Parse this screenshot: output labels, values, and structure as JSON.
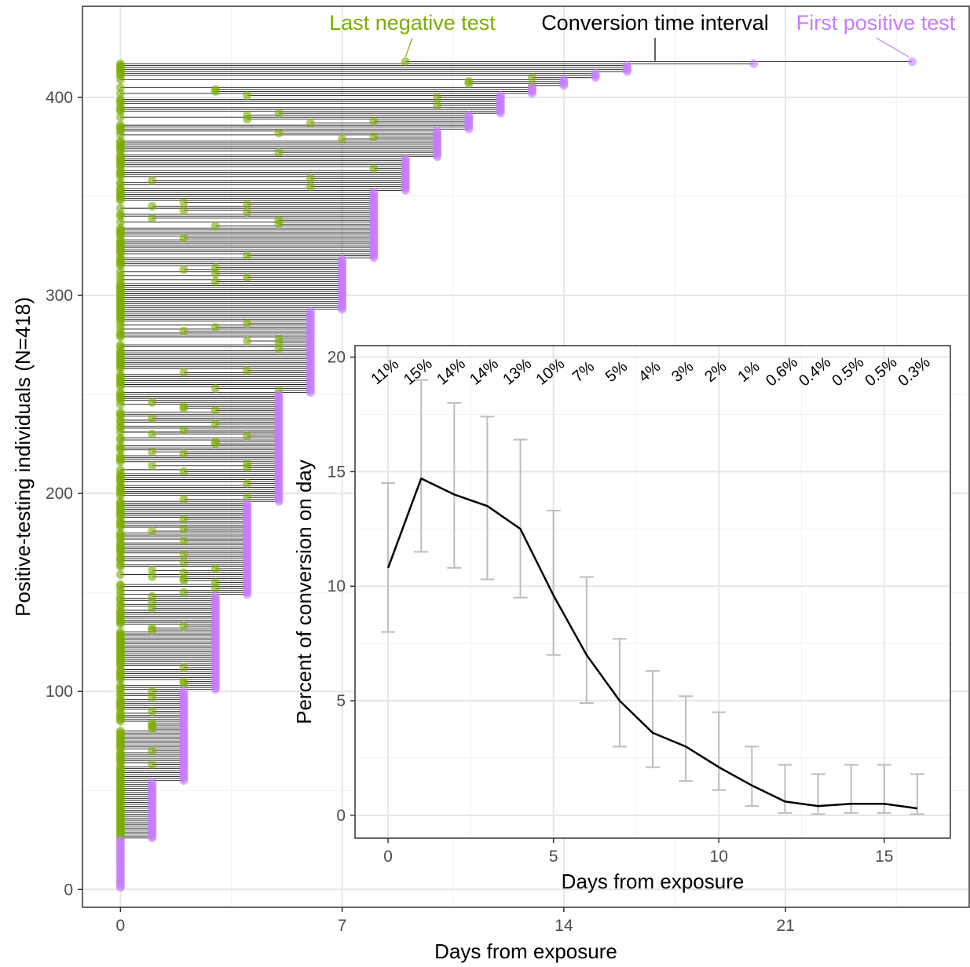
{
  "chart_data": [
    {
      "type": "interval-dotplot",
      "n_individuals": 418,
      "xlabel": "Days from exposure",
      "ylabel": "Positive-testing individuals (N=418)",
      "xlim": [
        -1.2,
        26.8
      ],
      "ylim": [
        -9,
        446
      ],
      "x_ticks": [
        0,
        7,
        14,
        21
      ],
      "y_ticks": [
        0,
        100,
        200,
        300,
        400
      ],
      "grid": true,
      "legend": {
        "last_negative": "Last negative test",
        "interval": "Conversion time interval",
        "first_positive": "First positive test"
      },
      "colors": {
        "last_negative": "#7cae00",
        "first_positive": "#c77cff",
        "interval": "#000000"
      },
      "groups": [
        {
          "first_positive_day": 0,
          "rows": [
            1,
            25
          ],
          "last_negative_days": [
            0
          ]
        },
        {
          "first_positive_day": 1,
          "rows": [
            26,
            54
          ],
          "last_negative_days": [
            0
          ]
        },
        {
          "first_positive_day": 2,
          "rows": [
            55,
            100
          ],
          "last_negative_days": [
            0,
            1
          ]
        },
        {
          "first_positive_day": 3,
          "rows": [
            101,
            148
          ],
          "last_negative_days": [
            0,
            1,
            2
          ]
        },
        {
          "first_positive_day": 4,
          "rows": [
            149,
            195
          ],
          "last_negative_days": [
            0,
            1,
            2,
            3
          ]
        },
        {
          "first_positive_day": 5,
          "rows": [
            196,
            250
          ],
          "last_negative_days": [
            0,
            1,
            2,
            3,
            4
          ]
        },
        {
          "first_positive_day": 6,
          "rows": [
            251,
            292
          ],
          "last_negative_days": [
            0,
            2,
            3,
            4,
            5
          ]
        },
        {
          "first_positive_day": 7,
          "rows": [
            293,
            318
          ],
          "last_negative_days": [
            0,
            2,
            3,
            4,
            5
          ]
        },
        {
          "first_positive_day": 8,
          "rows": [
            319,
            352
          ],
          "last_negative_days": [
            0,
            1,
            2,
            3,
            4,
            5,
            6
          ]
        },
        {
          "first_positive_day": 9,
          "rows": [
            353,
            369
          ],
          "last_negative_days": [
            0,
            1,
            2,
            4,
            6,
            7,
            8
          ]
        },
        {
          "first_positive_day": 10,
          "rows": [
            370,
            383
          ],
          "last_negative_days": [
            0,
            2,
            4,
            5,
            7,
            8
          ]
        },
        {
          "first_positive_day": 11,
          "rows": [
            384,
            391
          ],
          "last_negative_days": [
            0,
            4,
            6,
            7,
            8
          ]
        },
        {
          "first_positive_day": 12,
          "rows": [
            392,
            401
          ],
          "last_negative_days": [
            0,
            4,
            5,
            6,
            7,
            8,
            10
          ]
        },
        {
          "first_positive_day": 13,
          "rows": [
            402,
            405
          ],
          "last_negative_days": [
            0,
            3,
            9
          ]
        },
        {
          "first_positive_day": 14,
          "rows": [
            406,
            409
          ],
          "last_negative_days": [
            0,
            5,
            11,
            13
          ]
        },
        {
          "first_positive_day": 15,
          "rows": [
            410,
            412
          ],
          "last_negative_days": [
            0,
            9,
            13
          ]
        },
        {
          "first_positive_day": 16,
          "rows": [
            413,
            416
          ],
          "last_negative_days": [
            0,
            14,
            15
          ]
        },
        {
          "first_positive_day": 20,
          "rows": [
            417,
            417
          ],
          "last_negative_days": [
            0
          ]
        },
        {
          "first_positive_day": 25,
          "rows": [
            418,
            418
          ],
          "last_negative_days": [
            9
          ]
        }
      ]
    },
    {
      "type": "line",
      "xlabel": "Days from exposure",
      "ylabel": "Percent of conversion on day",
      "xlim": [
        -1,
        17
      ],
      "ylim": [
        -1,
        20.5
      ],
      "x_ticks": [
        0,
        5,
        10,
        15
      ],
      "y_ticks": [
        0,
        5,
        10,
        15,
        20
      ],
      "grid": true,
      "x": [
        0,
        1,
        2,
        3,
        4,
        5,
        6,
        7,
        8,
        9,
        10,
        11,
        12,
        13,
        14,
        15,
        16
      ],
      "values": [
        10.8,
        14.7,
        14.0,
        13.5,
        12.5,
        9.6,
        7.0,
        5.0,
        3.6,
        3.0,
        2.1,
        1.3,
        0.6,
        0.4,
        0.5,
        0.5,
        0.3
      ],
      "lower": [
        8.0,
        11.5,
        10.8,
        10.3,
        9.5,
        7.0,
        4.9,
        3.0,
        2.1,
        1.5,
        1.1,
        0.4,
        0.1,
        0.05,
        0.1,
        0.1,
        0.05
      ],
      "upper": [
        14.5,
        19.0,
        18.0,
        17.4,
        16.4,
        13.3,
        10.4,
        7.7,
        6.3,
        5.2,
        4.5,
        3.0,
        2.2,
        1.8,
        2.2,
        2.2,
        1.8
      ],
      "data_labels": [
        "11%",
        "15%",
        "14%",
        "14%",
        "13%",
        "10%",
        "7%",
        "5%",
        "4%",
        "3%",
        "2%",
        "1%",
        "0.6%",
        "0.4%",
        "0.5%",
        "0.5%",
        "0.3%"
      ],
      "colors": {
        "line": "#000000",
        "error_bar": "#bdbdbd"
      }
    }
  ]
}
